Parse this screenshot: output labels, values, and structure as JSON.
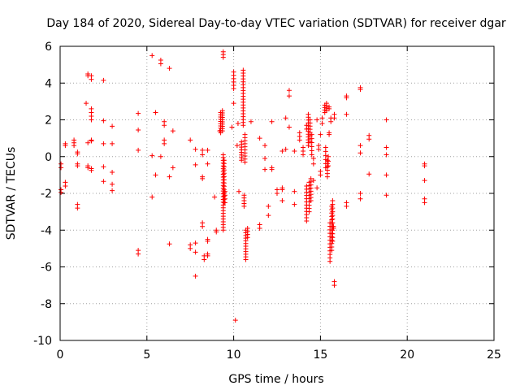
{
  "chart_data": {
    "type": "scatter",
    "title": "Day 184 of 2020, Sidereal Day-to-day VTEC variation (SDTVAR) for receiver dgar",
    "xlabel": "GPS time / hours",
    "ylabel": "SDTVAR / TECUs",
    "xlim": [
      0,
      25
    ],
    "ylim": [
      -10,
      6
    ],
    "xticks": [
      0,
      5,
      10,
      15,
      20,
      25
    ],
    "yticks": [
      -10,
      -8,
      -6,
      -4,
      -2,
      0,
      2,
      4,
      6
    ],
    "xtick_labels": [
      "0",
      "5",
      "10",
      "15",
      "20",
      "25"
    ],
    "ytick_labels": [
      "-10",
      "-8",
      "-6",
      "-4",
      "-2",
      "0",
      "2",
      "4",
      "6"
    ],
    "grid": true,
    "marker": "+",
    "color": "#ff0000",
    "segments": [
      {
        "x": 0.05,
        "y0": -0.4,
        "y1": -0.6,
        "n": 2
      },
      {
        "x": 0.05,
        "y0": -1.8,
        "y1": -1.95,
        "n": 2
      },
      {
        "x": 0.3,
        "y0": 0.7,
        "y1": 0.6,
        "n": 2
      },
      {
        "x": 0.3,
        "y0": -1.4,
        "y1": -1.6,
        "n": 2
      },
      {
        "x": 0.8,
        "y0": 0.9,
        "y1": 0.6,
        "n": 3
      },
      {
        "x": 1.0,
        "y0": 0.25,
        "y1": 0.15,
        "n": 2
      },
      {
        "x": 1.0,
        "y0": -0.4,
        "y1": -0.5,
        "n": 2
      },
      {
        "x": 1.0,
        "y0": -2.6,
        "y1": -2.8,
        "n": 2
      },
      {
        "x": 1.5,
        "y0": 2.9,
        "y1": 2.9,
        "n": 1
      },
      {
        "x": 1.6,
        "y0": 4.5,
        "y1": 4.4,
        "n": 2
      },
      {
        "x": 1.6,
        "y0": 0.75,
        "y1": 0.75,
        "n": 1
      },
      {
        "x": 1.6,
        "y0": -0.5,
        "y1": -0.6,
        "n": 2
      },
      {
        "x": 1.8,
        "y0": 4.4,
        "y1": 4.2,
        "n": 2
      },
      {
        "x": 1.8,
        "y0": 2.6,
        "y1": 2.0,
        "n": 4
      },
      {
        "x": 1.8,
        "y0": 0.9,
        "y1": 0.85,
        "n": 2
      },
      {
        "x": 1.8,
        "y0": -0.65,
        "y1": -0.75,
        "n": 2
      },
      {
        "x": 2.5,
        "y0": 4.15,
        "y1": 4.15,
        "n": 1
      },
      {
        "x": 2.5,
        "y0": 1.95,
        "y1": 1.95,
        "n": 1
      },
      {
        "x": 2.5,
        "y0": 0.7,
        "y1": 0.7,
        "n": 1
      },
      {
        "x": 2.5,
        "y0": -0.55,
        "y1": -0.55,
        "n": 1
      },
      {
        "x": 2.5,
        "y0": -1.35,
        "y1": -1.35,
        "n": 1
      },
      {
        "x": 3.0,
        "y0": 1.65,
        "y1": 1.65,
        "n": 1
      },
      {
        "x": 3.0,
        "y0": 0.7,
        "y1": 0.7,
        "n": 1
      },
      {
        "x": 3.0,
        "y0": -0.85,
        "y1": -0.85,
        "n": 1
      },
      {
        "x": 3.0,
        "y0": -1.5,
        "y1": -1.85,
        "n": 2
      },
      {
        "x": 4.5,
        "y0": 2.35,
        "y1": 2.35,
        "n": 1
      },
      {
        "x": 4.5,
        "y0": 1.45,
        "y1": 1.45,
        "n": 1
      },
      {
        "x": 4.5,
        "y0": 0.35,
        "y1": 0.35,
        "n": 1
      },
      {
        "x": 4.5,
        "y0": -5.1,
        "y1": -5.3,
        "n": 2
      },
      {
        "x": 5.3,
        "y0": 5.5,
        "y1": 5.5,
        "n": 1
      },
      {
        "x": 5.3,
        "y0": 0.05,
        "y1": 0.05,
        "n": 1
      },
      {
        "x": 5.3,
        "y0": -2.2,
        "y1": -2.2,
        "n": 1
      },
      {
        "x": 5.5,
        "y0": 2.4,
        "y1": 2.4,
        "n": 1
      },
      {
        "x": 5.5,
        "y0": -1.0,
        "y1": -1.0,
        "n": 1
      },
      {
        "x": 5.8,
        "y0": 5.25,
        "y1": 5.05,
        "n": 2
      },
      {
        "x": 5.8,
        "y0": 0.0,
        "y1": 0.0,
        "n": 1
      },
      {
        "x": 6.0,
        "y0": 1.9,
        "y1": 1.7,
        "n": 2
      },
      {
        "x": 6.0,
        "y0": 0.9,
        "y1": 0.7,
        "n": 2
      },
      {
        "x": 6.3,
        "y0": 4.8,
        "y1": 4.8,
        "n": 1
      },
      {
        "x": 6.3,
        "y0": -1.1,
        "y1": -1.1,
        "n": 1
      },
      {
        "x": 6.3,
        "y0": -4.75,
        "y1": -4.75,
        "n": 1
      },
      {
        "x": 6.5,
        "y0": 1.4,
        "y1": 1.4,
        "n": 1
      },
      {
        "x": 6.5,
        "y0": -0.6,
        "y1": -0.6,
        "n": 1
      },
      {
        "x": 7.5,
        "y0": 0.9,
        "y1": 0.9,
        "n": 1
      },
      {
        "x": 7.5,
        "y0": -4.8,
        "y1": -5.0,
        "n": 2
      },
      {
        "x": 7.8,
        "y0": 0.4,
        "y1": 0.4,
        "n": 1
      },
      {
        "x": 7.8,
        "y0": -0.45,
        "y1": -0.45,
        "n": 1
      },
      {
        "x": 7.8,
        "y0": -4.7,
        "y1": -5.2,
        "n": 2
      },
      {
        "x": 7.8,
        "y0": -6.5,
        "y1": -6.5,
        "n": 1
      },
      {
        "x": 8.2,
        "y0": 0.35,
        "y1": 0.1,
        "n": 2
      },
      {
        "x": 8.2,
        "y0": -1.1,
        "y1": -1.2,
        "n": 2
      },
      {
        "x": 8.2,
        "y0": -3.6,
        "y1": -3.8,
        "n": 2
      },
      {
        "x": 8.3,
        "y0": -5.4,
        "y1": -5.6,
        "n": 2
      },
      {
        "x": 8.5,
        "y0": 0.35,
        "y1": 0.35,
        "n": 1
      },
      {
        "x": 8.5,
        "y0": -0.4,
        "y1": -0.4,
        "n": 1
      },
      {
        "x": 8.5,
        "y0": -4.5,
        "y1": -4.6,
        "n": 2
      },
      {
        "x": 8.5,
        "y0": -5.3,
        "y1": -5.4,
        "n": 2
      },
      {
        "x": 8.9,
        "y0": -2.2,
        "y1": -2.2,
        "n": 1
      },
      {
        "x": 9.0,
        "y0": -4.0,
        "y1": -4.1,
        "n": 2
      },
      {
        "x": 9.2,
        "y0": 1.4,
        "y1": 1.4,
        "n": 1
      },
      {
        "x": 9.25,
        "y0": 2.4,
        "y1": 1.3,
        "n": 10
      },
      {
        "x": 9.35,
        "y0": 2.5,
        "y1": 1.4,
        "n": 10
      },
      {
        "x": 9.4,
        "y0": 5.7,
        "y1": 5.4,
        "n": 3
      },
      {
        "x": 9.4,
        "y0": 0.1,
        "y1": -4.0,
        "n": 28
      },
      {
        "x": 9.45,
        "y0": -0.2,
        "y1": -2.5,
        "n": 14
      },
      {
        "x": 9.5,
        "y0": -1.9,
        "y1": -2.5,
        "n": 4
      },
      {
        "x": 9.9,
        "y0": 1.6,
        "y1": 1.6,
        "n": 1
      },
      {
        "x": 10.0,
        "y0": 2.9,
        "y1": 2.9,
        "n": 1
      },
      {
        "x": 10.0,
        "y0": 4.6,
        "y1": 3.7,
        "n": 6
      },
      {
        "x": 10.1,
        "y0": -8.9,
        "y1": -8.9,
        "n": 1
      },
      {
        "x": 10.2,
        "y0": 0.6,
        "y1": 0.6,
        "n": 1
      },
      {
        "x": 10.25,
        "y0": 1.8,
        "y1": 1.8,
        "n": 1
      },
      {
        "x": 10.3,
        "y0": -1.9,
        "y1": -1.9,
        "n": 1
      },
      {
        "x": 10.45,
        "y0": 0.8,
        "y1": -0.2,
        "n": 8
      },
      {
        "x": 10.55,
        "y0": 4.7,
        "y1": 1.7,
        "n": 20
      },
      {
        "x": 10.6,
        "y0": -2.1,
        "y1": -2.7,
        "n": 5
      },
      {
        "x": 10.65,
        "y0": 1.2,
        "y1": -0.3,
        "n": 10
      },
      {
        "x": 10.7,
        "y0": -4.0,
        "y1": -5.6,
        "n": 12
      },
      {
        "x": 10.8,
        "y0": -3.9,
        "y1": -4.4,
        "n": 4
      },
      {
        "x": 11.0,
        "y0": 1.9,
        "y1": 1.9,
        "n": 1
      },
      {
        "x": 11.5,
        "y0": 1.0,
        "y1": 1.0,
        "n": 1
      },
      {
        "x": 11.5,
        "y0": -3.7,
        "y1": -3.9,
        "n": 2
      },
      {
        "x": 11.8,
        "y0": 0.6,
        "y1": 0.6,
        "n": 1
      },
      {
        "x": 11.8,
        "y0": -0.1,
        "y1": -0.1,
        "n": 1
      },
      {
        "x": 11.8,
        "y0": -0.7,
        "y1": -0.7,
        "n": 1
      },
      {
        "x": 12.0,
        "y0": -2.7,
        "y1": -2.7,
        "n": 1
      },
      {
        "x": 12.0,
        "y0": -3.2,
        "y1": -3.2,
        "n": 1
      },
      {
        "x": 12.2,
        "y0": 1.9,
        "y1": 1.9,
        "n": 1
      },
      {
        "x": 12.2,
        "y0": -0.6,
        "y1": -0.7,
        "n": 2
      },
      {
        "x": 12.5,
        "y0": -1.8,
        "y1": -2.0,
        "n": 2
      },
      {
        "x": 12.8,
        "y0": 0.3,
        "y1": 0.3,
        "n": 1
      },
      {
        "x": 12.8,
        "y0": -1.7,
        "y1": -1.8,
        "n": 2
      },
      {
        "x": 12.8,
        "y0": -2.4,
        "y1": -2.4,
        "n": 1
      },
      {
        "x": 13.0,
        "y0": 2.1,
        "y1": 2.1,
        "n": 1
      },
      {
        "x": 13.0,
        "y0": 0.4,
        "y1": 0.4,
        "n": 1
      },
      {
        "x": 13.2,
        "y0": 3.6,
        "y1": 3.3,
        "n": 2
      },
      {
        "x": 13.2,
        "y0": 1.6,
        "y1": 1.6,
        "n": 1
      },
      {
        "x": 13.5,
        "y0": 0.3,
        "y1": 0.3,
        "n": 1
      },
      {
        "x": 13.5,
        "y0": -2.6,
        "y1": -2.6,
        "n": 1
      },
      {
        "x": 13.5,
        "y0": -1.9,
        "y1": -1.9,
        "n": 1
      },
      {
        "x": 13.8,
        "y0": 1.3,
        "y1": 0.9,
        "n": 3
      },
      {
        "x": 14.0,
        "y0": 0.5,
        "y1": 0.1,
        "n": 3
      },
      {
        "x": 14.2,
        "y0": 1.7,
        "y1": 1.5,
        "n": 2
      },
      {
        "x": 14.2,
        "y0": -1.6,
        "y1": -3.5,
        "n": 12
      },
      {
        "x": 14.3,
        "y0": 2.3,
        "y1": 0.6,
        "n": 12
      },
      {
        "x": 14.35,
        "y0": -1.4,
        "y1": -3.0,
        "n": 10
      },
      {
        "x": 14.4,
        "y0": 2.0,
        "y1": 0.8,
        "n": 8
      },
      {
        "x": 14.45,
        "y0": -1.2,
        "y1": -2.4,
        "n": 8
      },
      {
        "x": 14.5,
        "y0": 1.2,
        "y1": 0.1,
        "n": 6
      },
      {
        "x": 14.6,
        "y0": -0.1,
        "y1": -0.4,
        "n": 2
      },
      {
        "x": 14.6,
        "y0": -1.3,
        "y1": -1.3,
        "n": 1
      },
      {
        "x": 14.8,
        "y0": 2.0,
        "y1": 2.0,
        "n": 1
      },
      {
        "x": 14.8,
        "y0": -1.7,
        "y1": -1.7,
        "n": 1
      },
      {
        "x": 14.9,
        "y0": 0.6,
        "y1": 0.4,
        "n": 2
      },
      {
        "x": 15.0,
        "y0": 1.2,
        "y1": 1.2,
        "n": 1
      },
      {
        "x": 15.0,
        "y0": -0.8,
        "y1": -1.0,
        "n": 2
      },
      {
        "x": 15.1,
        "y0": 2.1,
        "y1": 1.8,
        "n": 2
      },
      {
        "x": 15.25,
        "y0": 2.8,
        "y1": 2.4,
        "n": 4
      },
      {
        "x": 15.3,
        "y0": 0.5,
        "y1": -0.6,
        "n": 6
      },
      {
        "x": 15.35,
        "y0": 2.9,
        "y1": 2.5,
        "n": 4
      },
      {
        "x": 15.4,
        "y0": -0.2,
        "y1": -1.1,
        "n": 6
      },
      {
        "x": 15.45,
        "y0": 0.0,
        "y1": -0.5,
        "n": 3
      },
      {
        "x": 15.5,
        "y0": 2.7,
        "y1": 2.6,
        "n": 2
      },
      {
        "x": 15.5,
        "y0": 1.3,
        "y1": 1.2,
        "n": 2
      },
      {
        "x": 15.55,
        "y0": -3.6,
        "y1": -5.7,
        "n": 12
      },
      {
        "x": 15.6,
        "y0": 2.1,
        "y1": 1.9,
        "n": 2
      },
      {
        "x": 15.65,
        "y0": -2.7,
        "y1": -5.1,
        "n": 14
      },
      {
        "x": 15.7,
        "y0": -2.4,
        "y1": -4.6,
        "n": 12
      },
      {
        "x": 15.75,
        "y0": -3.8,
        "y1": -3.9,
        "n": 2
      },
      {
        "x": 15.8,
        "y0": 2.3,
        "y1": 2.1,
        "n": 2
      },
      {
        "x": 15.8,
        "y0": -6.8,
        "y1": -7.0,
        "n": 2
      },
      {
        "x": 16.5,
        "y0": 3.3,
        "y1": 3.2,
        "n": 2
      },
      {
        "x": 16.5,
        "y0": 2.3,
        "y1": 2.3,
        "n": 1
      },
      {
        "x": 16.5,
        "y0": -2.5,
        "y1": -2.7,
        "n": 2
      },
      {
        "x": 17.3,
        "y0": 3.75,
        "y1": 3.65,
        "n": 2
      },
      {
        "x": 17.3,
        "y0": 0.6,
        "y1": 0.6,
        "n": 1
      },
      {
        "x": 17.3,
        "y0": 0.2,
        "y1": 0.2,
        "n": 1
      },
      {
        "x": 17.3,
        "y0": -2.0,
        "y1": -2.3,
        "n": 2
      },
      {
        "x": 17.8,
        "y0": 1.15,
        "y1": 0.95,
        "n": 2
      },
      {
        "x": 17.8,
        "y0": -0.95,
        "y1": -0.95,
        "n": 1
      },
      {
        "x": 18.8,
        "y0": 2.0,
        "y1": 2.0,
        "n": 1
      },
      {
        "x": 18.8,
        "y0": 0.5,
        "y1": 0.5,
        "n": 1
      },
      {
        "x": 18.8,
        "y0": 0.1,
        "y1": 0.1,
        "n": 1
      },
      {
        "x": 18.8,
        "y0": -1.0,
        "y1": -1.0,
        "n": 1
      },
      {
        "x": 18.8,
        "y0": -2.1,
        "y1": -2.1,
        "n": 1
      },
      {
        "x": 21.0,
        "y0": -0.4,
        "y1": -0.5,
        "n": 2
      },
      {
        "x": 21.0,
        "y0": -1.3,
        "y1": -1.3,
        "n": 1
      },
      {
        "x": 21.0,
        "y0": -2.3,
        "y1": -2.5,
        "n": 2
      }
    ]
  }
}
